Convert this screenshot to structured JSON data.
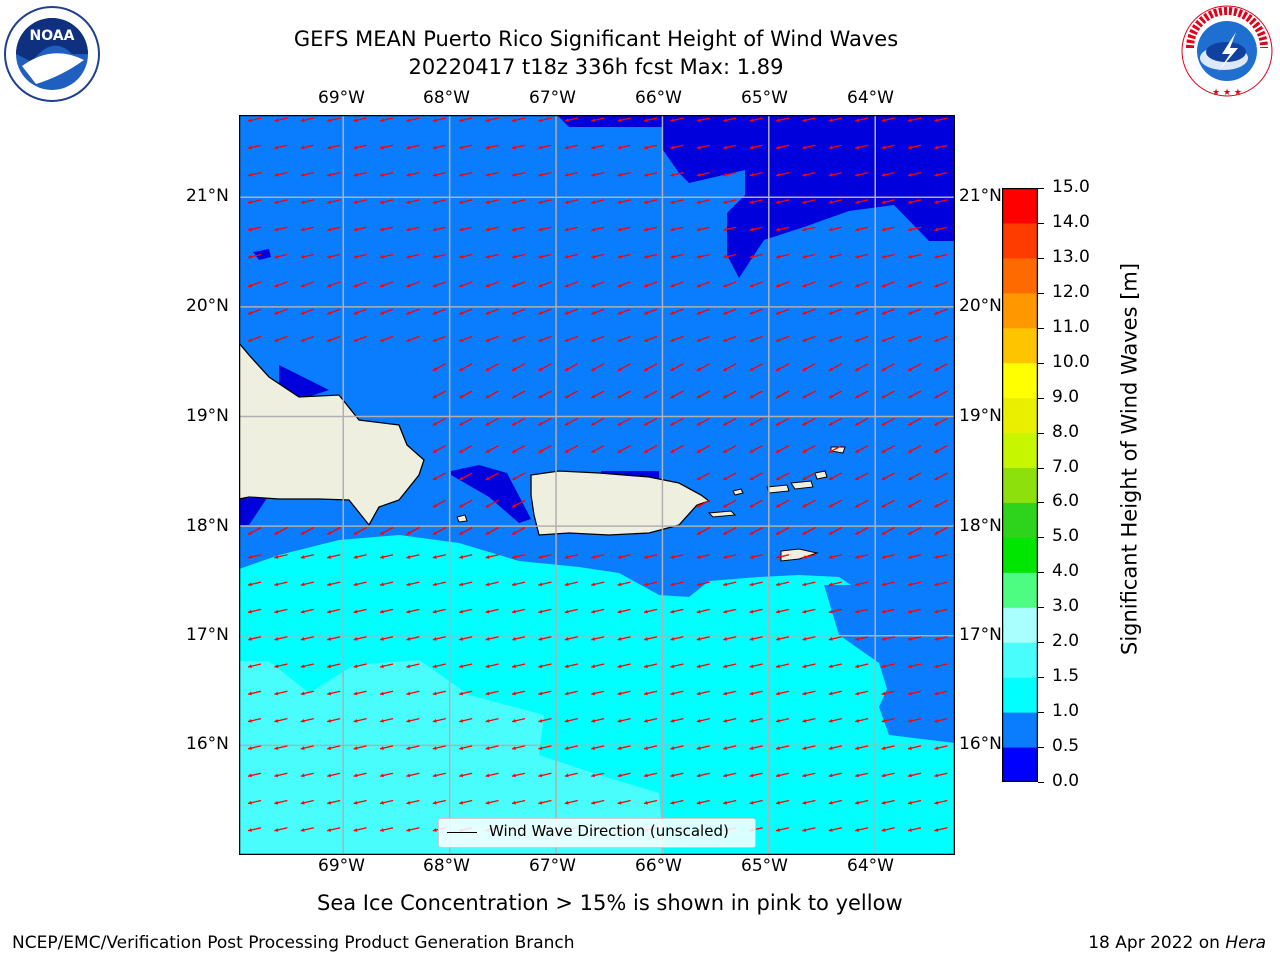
{
  "title": {
    "line1": "GEFS MEAN Puerto Rico Significant Height of Wind Waves",
    "line2": "20220417 t18z 336h fcst   Max: 1.89"
  },
  "logos": {
    "left": {
      "icon": "noaa-logo-icon",
      "text": "NOAA"
    },
    "right": {
      "icon": "national-weather-service-logo-icon",
      "text": "NATIONAL WEATHER SERVICE"
    }
  },
  "map": {
    "lon_labels": [
      "69°W",
      "68°W",
      "67°W",
      "66°W",
      "65°W",
      "64°W"
    ],
    "lat_labels": [
      "21°N",
      "20°N",
      "19°N",
      "18°N",
      "17°N",
      "16°N"
    ],
    "lon_values": [
      -69,
      -68,
      -67,
      -66,
      -65,
      -64
    ],
    "lat_values": [
      21,
      20,
      19,
      18,
      17,
      16
    ],
    "lon_range": [
      -69.98,
      -63.25
    ],
    "lat_range": [
      15.0,
      21.75
    ],
    "grid": true,
    "land_color": "#efefe0",
    "arrow_color": "#ff0000",
    "arrow_direction": "toward the west-southwest"
  },
  "colorbar": {
    "label": "Significant Height of Wind Waves [m]",
    "ticks": [
      "0.0",
      "0.5",
      "1.0",
      "1.5",
      "2.0",
      "3.0",
      "4.0",
      "5.0",
      "6.0",
      "7.0",
      "8.0",
      "9.0",
      "10.0",
      "11.0",
      "12.0",
      "13.0",
      "14.0",
      "15.0"
    ],
    "colors": [
      "#0000ff",
      "#0a7dff",
      "#00ffff",
      "#49fdfd",
      "#a9fefe",
      "#4dfd82",
      "#00e600",
      "#2ed31b",
      "#8de00c",
      "#c6f600",
      "#e8f000",
      "#ffff00",
      "#ffc400",
      "#ff9800",
      "#ff6a00",
      "#ff3c00",
      "#ff0000"
    ]
  },
  "legend": {
    "label": "Wind Wave Direction (unscaled)"
  },
  "note": "Sea Ice Concentration > 15% is shown in pink to yellow",
  "footer": {
    "left": "NCEP/EMC/Verification Post Processing Product Generation Branch",
    "right_prefix": "18 Apr 2022 on ",
    "right_italic": "Hera"
  }
}
